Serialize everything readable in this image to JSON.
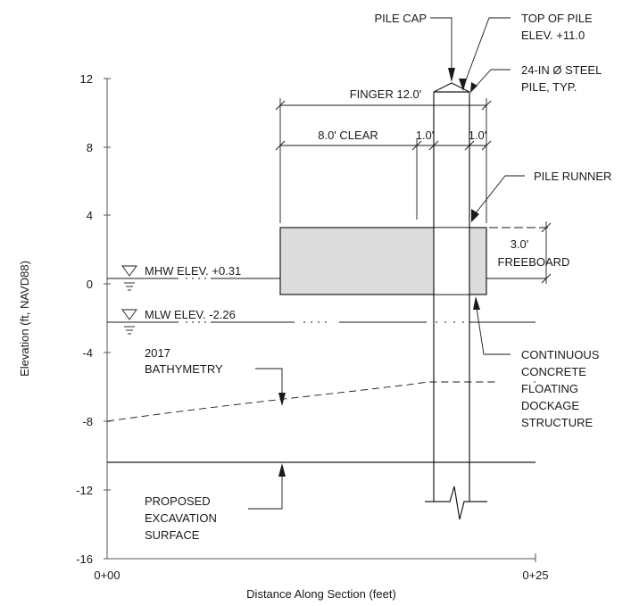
{
  "axes": {
    "y_label": "Elevation (ft, NAVD88)",
    "x_label": "Distance Along Section (feet)",
    "y_ticks": [
      "12",
      "8",
      "4",
      "0",
      "-4",
      "-8",
      "-12",
      "-16"
    ],
    "x_ticks": [
      "0+00",
      "0+25"
    ]
  },
  "labels": {
    "pile_cap": "PILE CAP",
    "top_of_pile_1": "TOP OF PILE",
    "top_of_pile_2": "ELEV. +11.0",
    "steel_pile_1": "24-IN Ø STEEL",
    "steel_pile_2": "PILE, TYP.",
    "finger": "FINGER 12.0'",
    "clear": "8.0' CLEAR",
    "dim_left": "1.0'",
    "dim_right": "1.0'",
    "pile_runner": "PILE RUNNER",
    "freeboard_1": "3.0'",
    "freeboard_2": "FREEBOARD",
    "mhw": "MHW ELEV. +0.31",
    "mlw": "MLW ELEV. -2.26",
    "bathy_1": "2017",
    "bathy_2": "BATHYMETRY",
    "dock_1": "CONTINUOUS",
    "dock_2": "CONCRETE",
    "dock_3": "FLOATING",
    "dock_4": "DOCKAGE",
    "dock_5": "STRUCTURE",
    "exc_1": "PROPOSED",
    "exc_2": "EXCAVATION",
    "exc_3": "SURFACE"
  },
  "elevations_ft": {
    "top_of_pile": 11.0,
    "mhw": 0.31,
    "mlw": -2.26
  },
  "colors": {
    "dock_fill": "#dcdcdc",
    "line": "#1a1a1a"
  }
}
